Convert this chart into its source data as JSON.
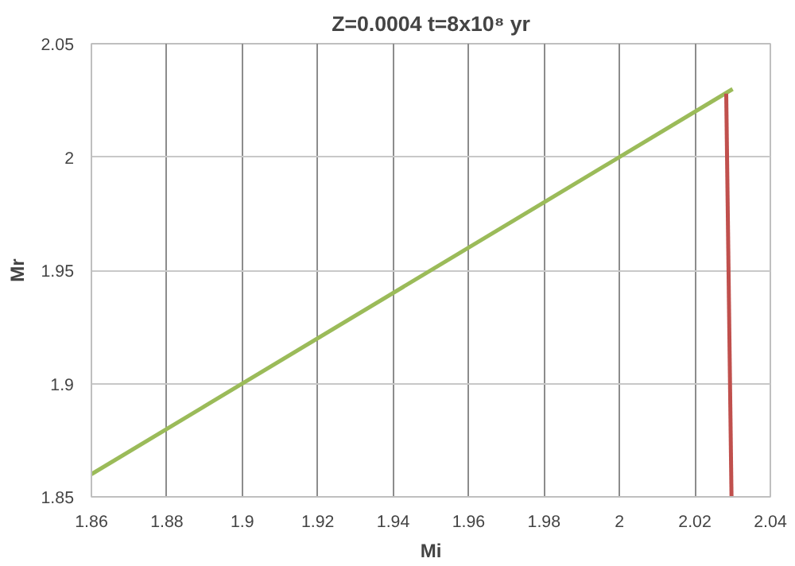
{
  "chart_data": {
    "type": "line",
    "title": "Z=0.0004 t=8x10⁸ yr",
    "xlabel": "Mi",
    "ylabel": "Mr",
    "series": [
      {
        "color": "#9bbb59",
        "x": [
          1.86,
          2.03
        ],
        "values": [
          1.86,
          2.03
        ]
      },
      {
        "color": "#c0504d",
        "x": [
          2.0283,
          2.0297
        ],
        "values": [
          2.028,
          1.85
        ]
      }
    ],
    "xlim": [
      1.86,
      2.04
    ],
    "ylim": [
      1.85,
      2.05
    ],
    "xticks": [
      1.86,
      1.88,
      1.9,
      1.92,
      1.94,
      1.96,
      1.98,
      2,
      2.02,
      2.04
    ],
    "yticks": [
      1.85,
      1.9,
      1.95,
      2,
      2.05
    ],
    "grid": true,
    "marker": "none",
    "line_style": "solid"
  }
}
